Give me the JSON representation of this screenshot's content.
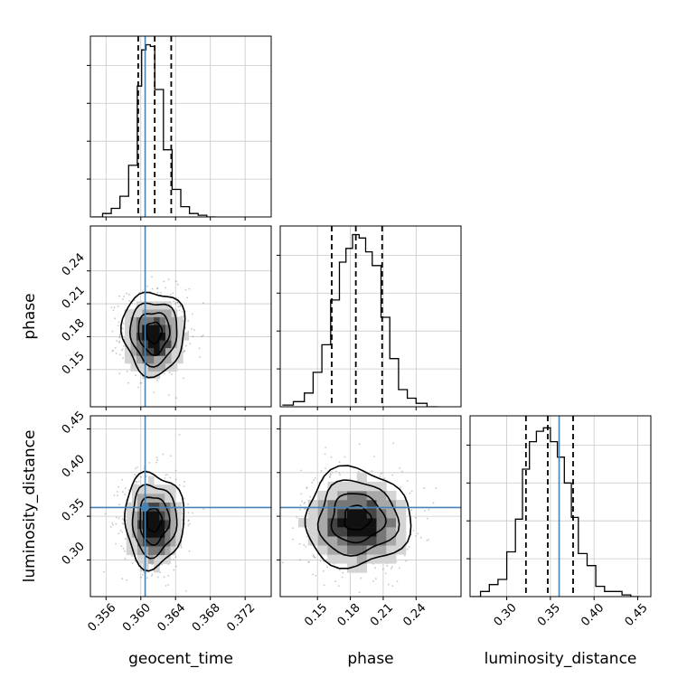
{
  "chart_data": {
    "type": "corner",
    "parameters": [
      {
        "name": "geocent_time",
        "label": "geocent_time",
        "range": [
          0.3542,
          0.375
        ],
        "ticks": [
          "0.356",
          "0.360",
          "0.364",
          "0.368",
          "0.372"
        ],
        "tick_values": [
          0.356,
          0.36,
          0.364,
          0.368,
          0.372
        ],
        "truth": 0.3605,
        "quantiles": [
          0.3597,
          0.3616,
          0.3635
        ],
        "histogram": {
          "edges": [
            0.3544,
            0.3556,
            0.3566,
            0.3576,
            0.3586,
            0.3596,
            0.3601,
            0.3606,
            0.3611,
            0.3616,
            0.3626,
            0.3636,
            0.3646,
            0.3656,
            0.3666,
            0.3676,
            0.3686
          ],
          "counts": [
            0.0,
            0.02,
            0.05,
            0.12,
            0.3,
            0.76,
            0.97,
            1.0,
            0.99,
            0.74,
            0.39,
            0.16,
            0.06,
            0.02,
            0.01,
            0.0
          ]
        }
      },
      {
        "name": "phase",
        "label": "phase",
        "range": [
          0.116,
          0.281
        ],
        "ticks": [
          "0.15",
          "0.18",
          "0.21",
          "0.24"
        ],
        "tick_values": [
          0.15,
          0.18,
          0.21,
          0.24
        ],
        "quantiles": [
          0.163,
          0.185,
          0.209
        ],
        "histogram": {
          "edges": [
            0.118,
            0.128,
            0.138,
            0.146,
            0.154,
            0.162,
            0.17,
            0.176,
            0.182,
            0.188,
            0.194,
            0.2,
            0.208,
            0.216,
            0.224,
            0.232,
            0.24,
            0.25,
            0.26
          ],
          "counts": [
            0.01,
            0.03,
            0.08,
            0.2,
            0.36,
            0.62,
            0.84,
            0.92,
            1.0,
            0.98,
            0.9,
            0.82,
            0.52,
            0.28,
            0.1,
            0.05,
            0.02,
            0.0
          ]
        }
      },
      {
        "name": "luminosity_distance",
        "label": "luminosity_distance",
        "range": [
          0.258,
          0.465
        ],
        "ticks": [
          "0.30",
          "0.35",
          "0.40",
          "0.45"
        ],
        "tick_values": [
          0.3,
          0.35,
          0.4,
          0.45
        ],
        "truth": 0.36,
        "quantiles": [
          0.322,
          0.347,
          0.376
        ],
        "histogram": {
          "edges": [
            0.26,
            0.27,
            0.28,
            0.29,
            0.3,
            0.31,
            0.318,
            0.326,
            0.334,
            0.342,
            0.35,
            0.358,
            0.366,
            0.374,
            0.382,
            0.392,
            0.402,
            0.412,
            0.422,
            0.432,
            0.442,
            0.452
          ],
          "counts": [
            0.0,
            0.03,
            0.07,
            0.1,
            0.26,
            0.45,
            0.74,
            0.9,
            0.96,
            0.98,
            0.9,
            0.81,
            0.66,
            0.46,
            0.25,
            0.18,
            0.06,
            0.03,
            0.03,
            0.01,
            0.0
          ]
        }
      }
    ],
    "pairs": [
      {
        "x": "geocent_time",
        "y": "phase",
        "center": [
          0.3615,
          0.184
        ],
        "sigma": [
          0.0018,
          0.019
        ],
        "levels": [
          0.5,
          1.0,
          1.5,
          2.0
        ]
      },
      {
        "x": "geocent_time",
        "y": "luminosity_distance",
        "center": [
          0.3615,
          0.346
        ],
        "sigma": [
          0.0017,
          0.027
        ],
        "levels": [
          0.5,
          1.0,
          1.5,
          2.0
        ]
      },
      {
        "x": "phase",
        "y": "luminosity_distance",
        "center": [
          0.186,
          0.348
        ],
        "sigma": [
          0.024,
          0.028
        ],
        "levels": [
          0.5,
          1.0,
          1.5,
          2.0
        ]
      }
    ],
    "grid": true,
    "colors": {
      "truth": "#4682b4",
      "hist": "#000000",
      "quantile": "#000000",
      "scatter": "#808080",
      "grid": "#c8c8c8"
    }
  }
}
